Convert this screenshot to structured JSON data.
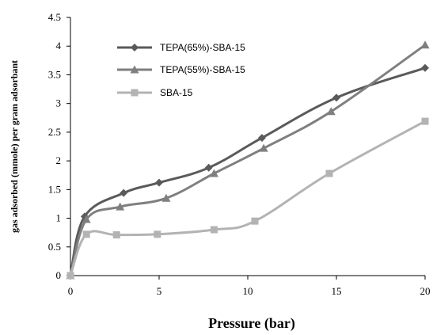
{
  "chart_data": {
    "type": "line",
    "title": "",
    "xlabel": "Pressure (bar)",
    "ylabel": "gas adsorbed (mmole) per gram adsorbant",
    "xlim": [
      0,
      20
    ],
    "ylim": [
      0,
      4.5
    ],
    "xticks": [
      0,
      5,
      10,
      15,
      20
    ],
    "yticks": [
      "0",
      "0.5",
      "1",
      "1.5",
      "2",
      "2.5",
      "3",
      "3.5",
      "4",
      "4.5"
    ],
    "grid": false,
    "legend_position": "top-left",
    "series": [
      {
        "name": "TEPA(65%)-SBA-15",
        "color": "#5a5a5a",
        "marker": "diamond",
        "x": [
          0,
          0.8,
          3.0,
          5.0,
          7.8,
          10.8,
          15.0,
          20.0
        ],
        "y": [
          0,
          1.03,
          1.44,
          1.62,
          1.88,
          2.4,
          3.1,
          3.62
        ]
      },
      {
        "name": "TEPA(55%)-SBA-15",
        "color": "#7f7f7f",
        "marker": "triangle",
        "x": [
          0,
          0.9,
          2.8,
          5.4,
          8.1,
          10.9,
          14.7,
          20.0
        ],
        "y": [
          0,
          0.98,
          1.2,
          1.35,
          1.78,
          2.22,
          2.86,
          4.02
        ]
      },
      {
        "name": "SBA-15",
        "color": "#b3b3b3",
        "marker": "square",
        "x": [
          0,
          0.9,
          2.6,
          4.9,
          8.1,
          10.4,
          14.6,
          20.0
        ],
        "y": [
          0,
          0.72,
          0.71,
          0.72,
          0.8,
          0.95,
          1.78,
          2.69
        ]
      }
    ]
  }
}
